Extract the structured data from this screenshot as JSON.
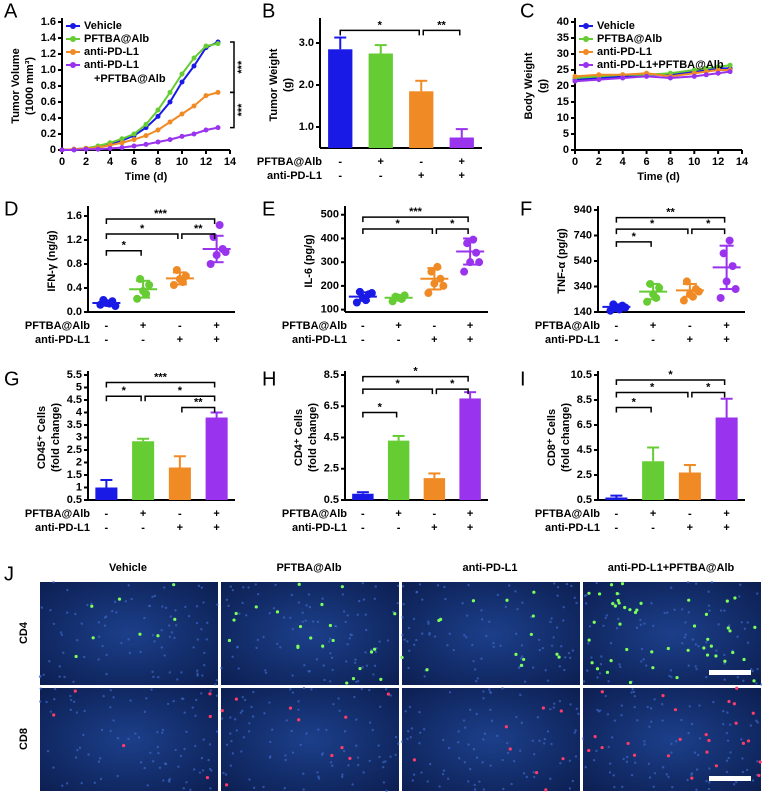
{
  "chart_data": [
    {
      "panel": "A",
      "type": "line",
      "xlabel": "Time (d)",
      "ylabel": [
        "Tumor Volume",
        "(1000 mm³)"
      ],
      "x": [
        0,
        1,
        2,
        3,
        4,
        5,
        6,
        7,
        8,
        9,
        10,
        11,
        12,
        13
      ],
      "xlim": [
        0,
        14
      ],
      "xticks": [
        0,
        2,
        4,
        6,
        8,
        10,
        12,
        14
      ],
      "ylim": [
        0,
        1.6
      ],
      "yticks": [
        0,
        0.2,
        0.4,
        0.6,
        0.8,
        {
          "value": 1,
          "label": "1.0"
        },
        1.2,
        1.4,
        1.6
      ],
      "series": [
        {
          "name": "Vehicle",
          "color": "#1a1ae6",
          "values": [
            0,
            0.01,
            0.02,
            0.04,
            0.08,
            0.12,
            0.18,
            0.28,
            0.42,
            0.6,
            0.85,
            1.05,
            1.28,
            1.35
          ]
        },
        {
          "name": "PFTBA@Alb",
          "color": "#66cc33",
          "values": [
            0,
            0.01,
            0.02,
            0.05,
            0.09,
            0.14,
            0.2,
            0.32,
            0.5,
            0.72,
            0.95,
            1.15,
            1.3,
            1.33
          ]
        },
        {
          "name": "anti-PD-L1",
          "color": "#f08a24",
          "values": [
            0,
            0.01,
            0.02,
            0.03,
            0.06,
            0.09,
            0.13,
            0.18,
            0.25,
            0.35,
            0.45,
            0.55,
            0.68,
            0.72
          ]
        },
        {
          "name": "anti-PD-L1 +PFTBA@Alb",
          "color": "#9933ee",
          "values": [
            0,
            0,
            0.01,
            0.01,
            0.02,
            0.03,
            0.05,
            0.07,
            0.1,
            0.13,
            0.17,
            0.2,
            0.25,
            0.28
          ]
        }
      ],
      "significance": [
        "***",
        "***"
      ]
    },
    {
      "panel": "B",
      "type": "bar",
      "ylabel": [
        "Tumor Weight",
        "(g)"
      ],
      "ylim": [
        0.5,
        3.5
      ],
      "yticks": [
        {
          "value": 1,
          "label": "1.0"
        },
        {
          "value": 2,
          "label": "2.0"
        },
        {
          "value": 3,
          "label": "3.0"
        }
      ],
      "values": [
        2.85,
        2.75,
        1.85,
        0.75
      ],
      "errors": [
        0.28,
        0.2,
        0.25,
        0.2
      ],
      "colors": [
        "#1a1ae6",
        "#66cc33",
        "#f08a24",
        "#9933ee"
      ],
      "conditions": [
        {
          "label": "PFTBA@Alb",
          "signs": [
            "-",
            "+",
            "-",
            "+"
          ]
        },
        {
          "label": "anti-PD-L1",
          "signs": [
            "-",
            "-",
            "+",
            "+"
          ]
        }
      ],
      "significance": [
        "*",
        "**"
      ]
    },
    {
      "panel": "C",
      "type": "line",
      "xlabel": "Time (d)",
      "ylabel": [
        "Body Weight",
        "(g)"
      ],
      "x": [
        0,
        2,
        4,
        6,
        8,
        10,
        11,
        12,
        13
      ],
      "xlim": [
        0,
        14
      ],
      "xticks": [
        0,
        2,
        4,
        6,
        8,
        10,
        12,
        14
      ],
      "ylim": [
        0,
        40
      ],
      "yticks": [
        0,
        5,
        10,
        15,
        20,
        25,
        30,
        35,
        40
      ],
      "series": [
        {
          "name": "Vehicle",
          "color": "#1a1ae6",
          "values": [
            22,
            22.5,
            23,
            23.5,
            23.5,
            24.5,
            25,
            25.5,
            25.5
          ]
        },
        {
          "name": "PFTBA@Alb",
          "color": "#66cc33",
          "values": [
            22.5,
            23,
            23.5,
            23.5,
            24,
            25,
            25.5,
            26,
            26.5
          ]
        },
        {
          "name": "anti-PD-L1",
          "color": "#f08a24",
          "values": [
            23,
            23.5,
            23.5,
            24,
            23,
            24,
            24.5,
            25,
            25
          ]
        },
        {
          "name": "anti-PD-L1+PFTBA@Alb",
          "color": "#9933ee",
          "values": [
            21.5,
            22,
            22.5,
            23,
            22.5,
            23,
            23.5,
            24,
            24.5
          ]
        }
      ]
    },
    {
      "panel": "D",
      "type": "dot",
      "ylabel": [
        "IFN-γ (ng/g)"
      ],
      "ylim": [
        0,
        1.7
      ],
      "yticks": [
        {
          "value": 0,
          "label": "0.0"
        },
        0.4,
        0.8,
        1.2,
        1.6
      ],
      "points": [
        [
          0.12,
          0.15,
          0.18,
          0.2,
          0.14,
          0.1
        ],
        [
          0.22,
          0.35,
          0.45,
          0.55,
          0.3
        ],
        [
          0.45,
          0.55,
          0.6,
          0.7,
          0.5
        ],
        [
          0.8,
          0.95,
          1.05,
          1.25,
          1.45,
          1.0
        ]
      ],
      "means": [
        0.15,
        0.38,
        0.56,
        1.05
      ],
      "sds": [
        0.04,
        0.14,
        0.1,
        0.22
      ],
      "colors": [
        "#1a1ae6",
        "#66cc33",
        "#f08a24",
        "#9933ee"
      ],
      "conditions": [
        {
          "label": "PFTBA@Alb",
          "signs": [
            "-",
            "+",
            "-",
            "+"
          ]
        },
        {
          "label": "anti-PD-L1",
          "signs": [
            "-",
            "-",
            "+",
            "+"
          ]
        }
      ],
      "significance": [
        "***",
        "*",
        "**",
        "*"
      ]
    },
    {
      "panel": "E",
      "type": "dot",
      "ylabel": [
        "IL-6 (pg/g)"
      ],
      "ylim": [
        90,
        520
      ],
      "yticks": [
        100,
        200,
        300,
        400,
        500
      ],
      "points": [
        [
          130,
          150,
          165,
          175,
          140,
          170
        ],
        [
          135,
          150,
          160,
          155,
          145
        ],
        [
          170,
          210,
          230,
          260,
          280,
          200
        ],
        [
          260,
          300,
          340,
          380,
          395,
          300
        ]
      ],
      "means": [
        155,
        150,
        230,
        345
      ],
      "sds": [
        18,
        10,
        45,
        55
      ],
      "colors": [
        "#1a1ae6",
        "#66cc33",
        "#f08a24",
        "#9933ee"
      ],
      "conditions": [
        {
          "label": "PFTBA@Alb",
          "signs": [
            "-",
            "+",
            "-",
            "+"
          ]
        },
        {
          "label": "anti-PD-L1",
          "signs": [
            "-",
            "-",
            "+",
            "+"
          ]
        }
      ],
      "significance": [
        "***",
        "*",
        "*"
      ]
    },
    {
      "panel": "F",
      "type": "dot",
      "ylabel": [
        "TNF-α (pg/g)"
      ],
      "ylim": [
        140,
        940
      ],
      "yticks": [
        140,
        340,
        540,
        740,
        940
      ],
      "points": [
        [
          150,
          170,
          190,
          200,
          160,
          175
        ],
        [
          220,
          280,
          330,
          360,
          250
        ],
        [
          230,
          280,
          320,
          380,
          260,
          300
        ],
        [
          250,
          380,
          500,
          600,
          700,
          320
        ]
      ],
      "means": [
        180,
        300,
        310,
        490
      ],
      "sds": [
        20,
        60,
        50,
        170
      ],
      "colors": [
        "#1a1ae6",
        "#66cc33",
        "#f08a24",
        "#9933ee"
      ],
      "conditions": [
        {
          "label": "PFTBA@Alb",
          "signs": [
            "-",
            "+",
            "-",
            "+"
          ]
        },
        {
          "label": "anti-PD-L1",
          "signs": [
            "-",
            "-",
            "+",
            "+"
          ]
        }
      ],
      "significance": [
        "**",
        "*",
        "*",
        "*"
      ]
    },
    {
      "panel": "G",
      "type": "bar",
      "ylabel": [
        "CD45⁺ Cells",
        "(fold change)"
      ],
      "ylim": [
        0.5,
        5.5
      ],
      "yticks": [
        0.5,
        1,
        1.5,
        2,
        2.5,
        3,
        3.5,
        4,
        4.5,
        5,
        5.5
      ],
      "values": [
        1.0,
        2.85,
        1.8,
        3.8
      ],
      "errors": [
        0.3,
        0.1,
        0.45,
        0.2
      ],
      "colors": [
        "#1a1ae6",
        "#66cc33",
        "#f08a24",
        "#9933ee"
      ],
      "conditions": [
        {
          "label": "PFTBA@Alb",
          "signs": [
            "-",
            "+",
            "-",
            "+"
          ]
        },
        {
          "label": "anti-PD-L1",
          "signs": [
            "-",
            "-",
            "+",
            "+"
          ]
        }
      ],
      "significance": [
        "***",
        "*",
        "*",
        "**"
      ]
    },
    {
      "panel": "H",
      "type": "bar",
      "ylabel": [
        "CD4⁺ Cells",
        "(fold change)"
      ],
      "ylim": [
        0.5,
        8.5
      ],
      "yticks": [
        0.5,
        2.5,
        4.5,
        6.5,
        8.5
      ],
      "values": [
        0.9,
        4.3,
        1.9,
        7.0
      ],
      "errors": [
        0.1,
        0.3,
        0.3,
        0.4
      ],
      "colors": [
        "#1a1ae6",
        "#66cc33",
        "#f08a24",
        "#9933ee"
      ],
      "conditions": [
        {
          "label": "PFTBA@Alb",
          "signs": [
            "-",
            "+",
            "-",
            "+"
          ]
        },
        {
          "label": "anti-PD-L1",
          "signs": [
            "-",
            "-",
            "+",
            "+"
          ]
        }
      ],
      "significance": [
        "*",
        "*",
        "*",
        "*"
      ]
    },
    {
      "panel": "I",
      "type": "bar",
      "ylabel": [
        "CD8⁺ Cells",
        "(fold change)"
      ],
      "ylim": [
        0.5,
        10.5
      ],
      "yticks": [
        0.5,
        2.5,
        4.5,
        6.5,
        8.5,
        10.5
      ],
      "values": [
        0.7,
        3.6,
        2.7,
        7.1
      ],
      "errors": [
        0.15,
        1.1,
        0.6,
        1.5
      ],
      "colors": [
        "#1a1ae6",
        "#66cc33",
        "#f08a24",
        "#9933ee"
      ],
      "conditions": [
        {
          "label": "PFTBA@Alb",
          "signs": [
            "-",
            "+",
            "-",
            "+"
          ]
        },
        {
          "label": "anti-PD-L1",
          "signs": [
            "-",
            "-",
            "+",
            "+"
          ]
        }
      ],
      "significance": [
        "*",
        "*",
        "*",
        "*"
      ]
    }
  ],
  "panel_j": {
    "panel": "J",
    "columns": [
      "Vehicle",
      "PFTBA@Alb",
      "anti-PD-L1",
      "anti-PD-L1+PFTBA@Alb"
    ],
    "rows": [
      "CD4",
      "CD8"
    ]
  }
}
